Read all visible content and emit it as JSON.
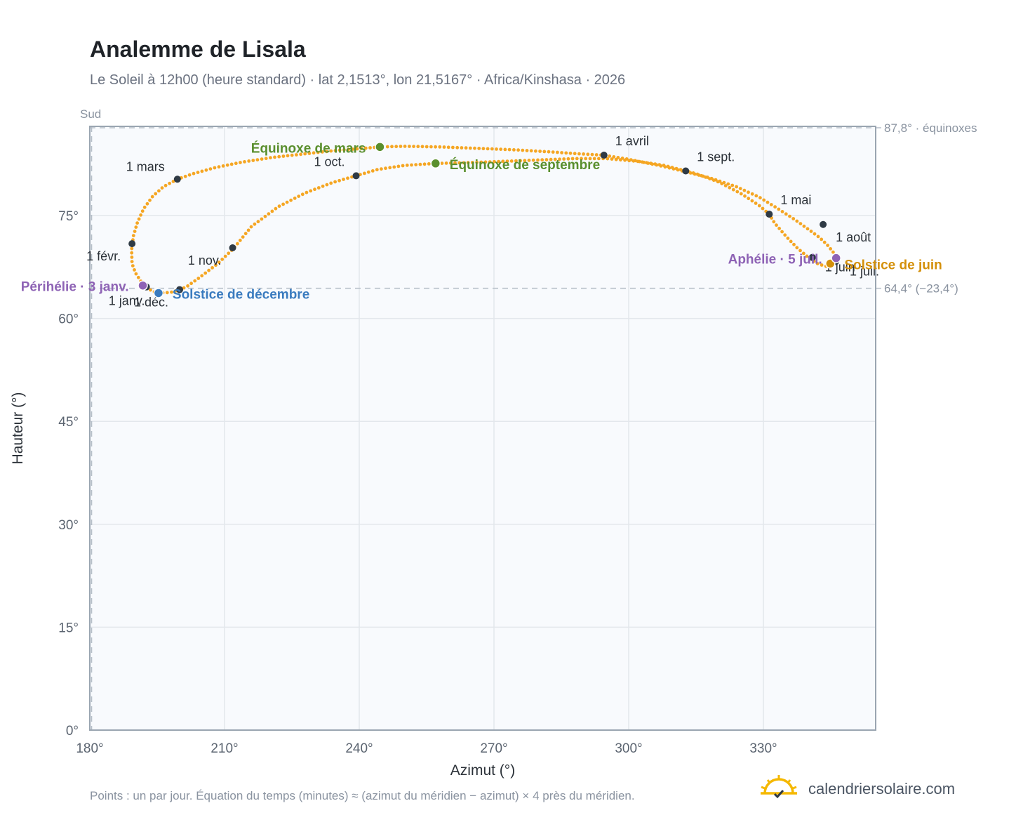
{
  "header": {
    "title": "Analemme de Lisala",
    "subtitle": "Le Soleil à 12h00 (heure standard) · lat 2,1513°, lon 21,5167° · Africa/Kinshasa · 2026"
  },
  "footer": {
    "note": "Points : un par jour. Équation du temps (minutes) ≈ (azimut du méridien − azimut) × 4 près du méridien.",
    "brand": "calendriersolaire.com",
    "brand_icon": "sun-check-icon"
  },
  "colors": {
    "curve": "#f5a623",
    "month_marker": "#2f3a45",
    "equinox": "#5a8f2e",
    "june_solstice": "#d4900a",
    "december_solstice": "#3a7bbf",
    "apsis": "#8e63b5",
    "plot_bg": "#f8fafd",
    "grid": "#e3e7ec",
    "ref_line": "#b5bec8"
  },
  "chart_data": {
    "type": "scatter",
    "title": "Analemme de Lisala",
    "xlabel": "Azimut (°)",
    "ylabel": "Hauteur (°)",
    "xlim": [
      180,
      355
    ],
    "ylim": [
      0,
      88
    ],
    "xticks": [
      180,
      210,
      240,
      270,
      300,
      330
    ],
    "xtick_labels": [
      "180°",
      "210°",
      "240°",
      "270°",
      "300°",
      "330°"
    ],
    "yticks": [
      0,
      15,
      30,
      45,
      60,
      75
    ],
    "ytick_labels": [
      "0°",
      "15°",
      "30°",
      "45°",
      "60°",
      "75°"
    ],
    "direction_label": "Sud",
    "grid": true,
    "reference_lines": [
      {
        "y": 87.8,
        "label": "87,8° · équinoxes"
      },
      {
        "y": 64.4,
        "label": "64,4° (−23,4°)"
      },
      {
        "x": 180.4,
        "label": ""
      }
    ],
    "series": [
      {
        "points": [
          [
            195.3,
            63.7
          ],
          [
            193.8,
            64.0
          ],
          [
            192.6,
            64.6
          ],
          [
            191.4,
            65.4
          ],
          [
            190.2,
            66.6
          ],
          [
            189.4,
            68.0
          ],
          [
            189.3,
            70.0
          ],
          [
            189.7,
            72.0
          ],
          [
            190.6,
            74.0
          ],
          [
            192.0,
            76.0
          ],
          [
            194.0,
            77.8
          ],
          [
            196.4,
            79.2
          ],
          [
            199.5,
            80.3
          ],
          [
            203.0,
            81.1
          ],
          [
            208.0,
            82.0
          ],
          [
            214.0,
            82.8
          ],
          [
            221.0,
            83.5
          ],
          [
            228.0,
            84.0
          ],
          [
            235.0,
            84.5
          ],
          [
            241.0,
            84.8
          ],
          [
            244.6,
            85.0
          ],
          [
            250.0,
            85.1
          ],
          [
            258.0,
            85.0
          ],
          [
            266.0,
            84.8
          ],
          [
            274.0,
            84.6
          ],
          [
            282.0,
            84.3
          ],
          [
            289.0,
            84.0
          ],
          [
            294.5,
            83.8
          ],
          [
            300.0,
            83.2
          ],
          [
            306.0,
            82.4
          ],
          [
            312.0,
            81.5
          ],
          [
            318.0,
            80.5
          ],
          [
            324.0,
            79.2
          ],
          [
            329.0,
            77.7
          ],
          [
            333.0,
            76.1
          ],
          [
            337.0,
            74.4
          ],
          [
            340.0,
            73.0
          ],
          [
            342.5,
            71.8
          ],
          [
            344.4,
            70.6
          ],
          [
            345.6,
            69.6
          ],
          [
            346.3,
            68.9
          ],
          [
            346.1,
            68.3
          ],
          [
            345.3,
            67.8
          ],
          [
            343.9,
            67.6
          ],
          [
            342.0,
            68.0
          ],
          [
            340.0,
            68.9
          ],
          [
            337.5,
            70.3
          ],
          [
            335.0,
            72.0
          ],
          [
            332.5,
            73.9
          ],
          [
            331.3,
            75.2
          ],
          [
            329.0,
            76.5
          ],
          [
            325.0,
            78.2
          ],
          [
            320.0,
            79.9
          ],
          [
            315.0,
            81.1
          ],
          [
            312.7,
            81.5
          ],
          [
            308.0,
            82.3
          ],
          [
            302.0,
            82.9
          ],
          [
            295.0,
            83.3
          ],
          [
            288.0,
            83.3
          ],
          [
            280.0,
            83.1
          ],
          [
            272.0,
            82.9
          ],
          [
            264.0,
            82.7
          ],
          [
            257.0,
            82.6
          ],
          [
            250.0,
            82.3
          ],
          [
            244.0,
            81.7
          ],
          [
            239.3,
            80.8
          ],
          [
            234.0,
            79.8
          ],
          [
            228.0,
            78.3
          ],
          [
            222.0,
            76.3
          ],
          [
            216.0,
            73.4
          ],
          [
            212.0,
            70.2
          ],
          [
            208.5,
            68.0
          ],
          [
            204.5,
            66.0
          ],
          [
            201.5,
            64.6
          ],
          [
            200.0,
            64.2
          ],
          [
            198.0,
            63.8
          ],
          [
            195.3,
            63.7
          ]
        ]
      }
    ],
    "month_markers": [
      {
        "label": "1 janv.",
        "x": 192.6,
        "y": 64.6
      },
      {
        "label": "1 févr.",
        "x": 189.4,
        "y": 70.9
      },
      {
        "label": "1 mars",
        "x": 199.5,
        "y": 80.3
      },
      {
        "label": "1 avril",
        "x": 294.5,
        "y": 83.8
      },
      {
        "label": "1 mai",
        "x": 331.3,
        "y": 75.2
      },
      {
        "label": "1 juin",
        "x": 340.9,
        "y": 68.9
      },
      {
        "label": "1 juil.",
        "x": 346.1,
        "y": 68.3
      },
      {
        "label": "1 août",
        "x": 343.3,
        "y": 73.7
      },
      {
        "label": "1 sept.",
        "x": 312.7,
        "y": 81.5
      },
      {
        "label": "1 oct.",
        "x": 239.3,
        "y": 80.8
      },
      {
        "label": "1 nov.",
        "x": 211.8,
        "y": 70.3
      },
      {
        "label": "1 déc.",
        "x": 200.0,
        "y": 64.2
      }
    ],
    "events": [
      {
        "label": "Équinoxe de mars",
        "x": 244.6,
        "y": 85.0,
        "kind": "equinox"
      },
      {
        "label": "Équinoxe de septembre",
        "x": 257.0,
        "y": 82.6,
        "kind": "equinox"
      },
      {
        "label": "Solstice de juin",
        "x": 344.9,
        "y": 68.0,
        "kind": "june_solstice"
      },
      {
        "label": "Solstice de décembre",
        "x": 195.3,
        "y": 63.7,
        "kind": "december_solstice"
      },
      {
        "label": "Périhélie · 3 janv.",
        "x": 191.8,
        "y": 64.8,
        "kind": "apsis"
      },
      {
        "label": "Aphélie · 5 juil.",
        "x": 346.2,
        "y": 68.8,
        "kind": "apsis"
      }
    ]
  }
}
